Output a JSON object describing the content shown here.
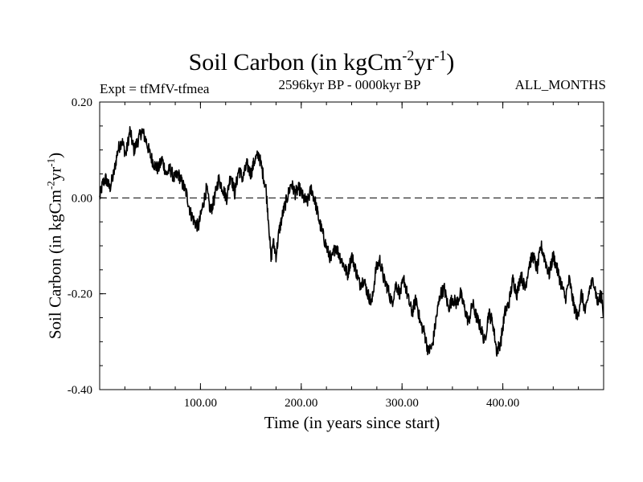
{
  "title": {
    "main": "Soil Carbon (in kgCm",
    "exp1": "-2",
    "mid": "yr",
    "exp2": "-1",
    "end": ")"
  },
  "experiment": "Expt = tfMfV-tfmea",
  "time_range": "2596kyr BP - 0000kyr BP",
  "months": "ALL_MONTHS",
  "chart_data": {
    "type": "line",
    "title": "Soil Carbon (in kgCm-2yr-1)",
    "xlabel": "Time (in years since start)",
    "ylabel": "Soil Carbon (in kgCm-2yr-1)",
    "xlim": [
      0,
      500
    ],
    "ylim": [
      -0.4,
      0.2
    ],
    "x_ticks": [
      100,
      200,
      300,
      400
    ],
    "x_tick_labels": [
      "100.00",
      "200.00",
      "300.00",
      "400.00"
    ],
    "y_ticks": [
      0.2,
      0.0,
      -0.2,
      -0.4
    ],
    "y_tick_labels": [
      "0.20",
      "0.00",
      "-0.20",
      "-0.40"
    ],
    "reference_line": {
      "y": 0.0,
      "style": "dashed"
    },
    "series": [
      {
        "name": "tfMfV-tfmea",
        "x": [
          0,
          3,
          6,
          10,
          14,
          18,
          22,
          26,
          30,
          34,
          38,
          42,
          46,
          50,
          54,
          58,
          62,
          66,
          70,
          74,
          78,
          82,
          86,
          90,
          94,
          98,
          102,
          106,
          110,
          114,
          118,
          122,
          126,
          130,
          134,
          138,
          142,
          146,
          150,
          154,
          158,
          162,
          165,
          168,
          170,
          172,
          175,
          178,
          182,
          186,
          190,
          194,
          198,
          202,
          206,
          210,
          214,
          218,
          222,
          226,
          230,
          234,
          238,
          242,
          246,
          250,
          254,
          258,
          262,
          266,
          270,
          274,
          278,
          282,
          286,
          290,
          294,
          298,
          302,
          306,
          310,
          314,
          318,
          322,
          326,
          330,
          334,
          338,
          342,
          346,
          350,
          354,
          358,
          362,
          366,
          370,
          374,
          378,
          382,
          386,
          390,
          394,
          398,
          402,
          406,
          410,
          414,
          418,
          422,
          426,
          430,
          434,
          438,
          442,
          446,
          450,
          454,
          458,
          462,
          466,
          470,
          474,
          478,
          482,
          486,
          490,
          494,
          498,
          500
        ],
        "y": [
          0.0,
          0.03,
          0.04,
          0.02,
          0.05,
          0.1,
          0.12,
          0.09,
          0.14,
          0.1,
          0.12,
          0.14,
          0.12,
          0.09,
          0.07,
          0.06,
          0.08,
          0.05,
          0.06,
          0.04,
          0.05,
          0.03,
          0.01,
          -0.03,
          -0.05,
          -0.06,
          -0.02,
          0.02,
          -0.03,
          0.0,
          0.04,
          0.02,
          0.0,
          0.05,
          0.01,
          0.06,
          0.04,
          0.07,
          0.05,
          0.08,
          0.09,
          0.05,
          0.02,
          -0.06,
          -0.13,
          -0.09,
          -0.12,
          -0.07,
          -0.03,
          0.0,
          0.03,
          0.01,
          0.02,
          0.0,
          -0.01,
          0.02,
          -0.01,
          -0.05,
          -0.08,
          -0.11,
          -0.13,
          -0.1,
          -0.12,
          -0.14,
          -0.16,
          -0.12,
          -0.15,
          -0.18,
          -0.17,
          -0.2,
          -0.22,
          -0.15,
          -0.13,
          -0.17,
          -0.19,
          -0.22,
          -0.18,
          -0.2,
          -0.17,
          -0.21,
          -0.24,
          -0.21,
          -0.26,
          -0.28,
          -0.32,
          -0.31,
          -0.25,
          -0.2,
          -0.19,
          -0.23,
          -0.21,
          -0.22,
          -0.2,
          -0.23,
          -0.26,
          -0.22,
          -0.25,
          -0.27,
          -0.3,
          -0.24,
          -0.26,
          -0.32,
          -0.3,
          -0.24,
          -0.22,
          -0.17,
          -0.2,
          -0.16,
          -0.19,
          -0.14,
          -0.12,
          -0.15,
          -0.1,
          -0.13,
          -0.16,
          -0.12,
          -0.15,
          -0.18,
          -0.21,
          -0.17,
          -0.22,
          -0.25,
          -0.2,
          -0.24,
          -0.19,
          -0.17,
          -0.22,
          -0.2,
          -0.25
        ]
      }
    ]
  },
  "axes": {
    "xlabel": "Time (in years since start)",
    "ylabel_main": "Soil Carbon (in kgCm",
    "ylabel_exp1": "-2",
    "ylabel_mid": "yr",
    "ylabel_exp2": "-1",
    "ylabel_end": ")"
  }
}
